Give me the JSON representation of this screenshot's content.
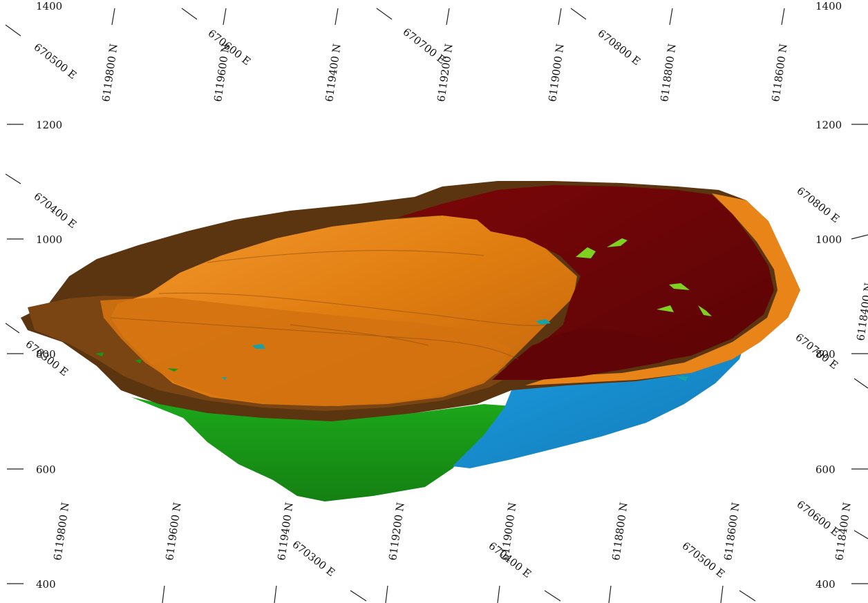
{
  "elevation_labels": {
    "left": [
      "1400",
      "1200",
      "1000",
      "800",
      "600",
      "400"
    ],
    "right": [
      "1400",
      "1200",
      "1000",
      "800",
      "600",
      "400"
    ]
  },
  "northing_labels": {
    "top": [
      "6119800 N",
      "6119600 N",
      "6119400 N",
      "6119200 N",
      "6119000 N",
      "6118800 N",
      "6118600 N"
    ],
    "bottom": [
      "6119800 N",
      "6119600 N",
      "6119400 N",
      "6119200 N",
      "6119000 N",
      "6118800 N",
      "6118600 N",
      "6118400 N"
    ],
    "right": [
      "6118400 N"
    ]
  },
  "easting_labels": {
    "top": [
      "670500 E",
      "670600 E",
      "670700 E",
      "670800 E"
    ],
    "left": [
      "670400 E",
      "670300 E"
    ],
    "right": [
      "670800 E",
      "670700 E"
    ],
    "bottom": [
      "670300 E",
      "670400 E",
      "670500 E",
      "670600 E"
    ]
  },
  "model_colors": {
    "dark_brown": "#5a3510",
    "brown": "#8a4e14",
    "orange": "#e07d10",
    "light_orange": "#f08a18",
    "dark_red": "#6e0508",
    "green": "#1a9518",
    "blue": "#1688c8",
    "lime": "#7ed321",
    "teal": "#17a2a8"
  }
}
